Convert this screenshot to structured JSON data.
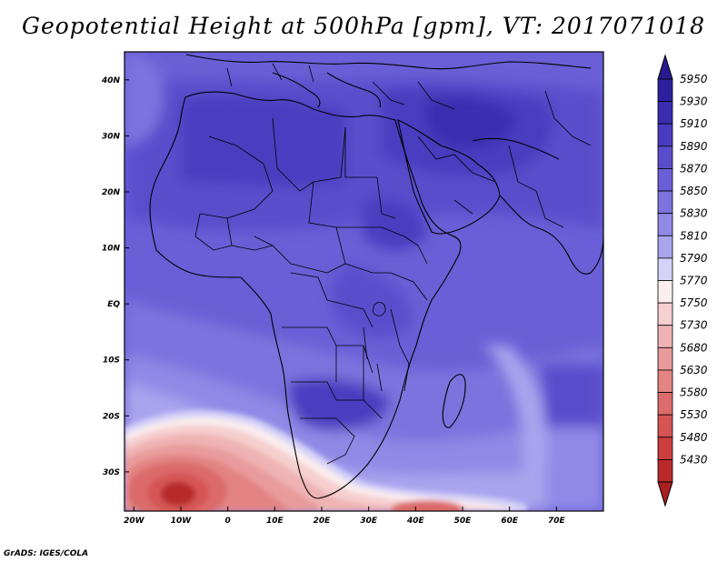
{
  "title": "Geopotential Height at 500hPa [gpm], VT: 2017071018",
  "footer": "GrADS: IGES/COLA",
  "map": {
    "lon_range": [
      -22,
      80
    ],
    "lat_range": [
      -37,
      45
    ],
    "lon_ticks": [
      {
        "value": -20,
        "label": "20W"
      },
      {
        "value": -10,
        "label": "10W"
      },
      {
        "value": 0,
        "label": "0"
      },
      {
        "value": 10,
        "label": "10E"
      },
      {
        "value": 20,
        "label": "20E"
      },
      {
        "value": 30,
        "label": "30E"
      },
      {
        "value": 40,
        "label": "40E"
      },
      {
        "value": 50,
        "label": "50E"
      },
      {
        "value": 60,
        "label": "60E"
      },
      {
        "value": 70,
        "label": "70E"
      }
    ],
    "lat_ticks": [
      {
        "value": 40,
        "label": "40N"
      },
      {
        "value": 30,
        "label": "30N"
      },
      {
        "value": 20,
        "label": "20N"
      },
      {
        "value": 10,
        "label": "10N"
      },
      {
        "value": 0,
        "label": "EQ"
      },
      {
        "value": -10,
        "label": "10S"
      },
      {
        "value": -20,
        "label": "20S"
      },
      {
        "value": -30,
        "label": "30S"
      }
    ]
  },
  "colorbar": {
    "levels": [
      {
        "label": "5950",
        "color": "#2e1f9e"
      },
      {
        "label": "5930",
        "color": "#3a2db0"
      },
      {
        "label": "5910",
        "color": "#4a3cc0"
      },
      {
        "label": "5890",
        "color": "#5a4dcc"
      },
      {
        "label": "5870",
        "color": "#6a5fd6"
      },
      {
        "label": "5850",
        "color": "#7c73de"
      },
      {
        "label": "5830",
        "color": "#9189e6"
      },
      {
        "label": "5810",
        "color": "#aaa4ee"
      },
      {
        "label": "5790",
        "color": "#d4d2f8"
      },
      {
        "label": "5770",
        "color": "#fbeeee"
      },
      {
        "label": "5750",
        "color": "#f6cfcf"
      },
      {
        "label": "5730",
        "color": "#efb3b3"
      },
      {
        "label": "5680",
        "color": "#e99b9b"
      },
      {
        "label": "5630",
        "color": "#e38383"
      },
      {
        "label": "5580",
        "color": "#dc6b6b"
      },
      {
        "label": "5530",
        "color": "#d55454"
      },
      {
        "label": "5480",
        "color": "#cd3e3e"
      },
      {
        "label": "5430",
        "color": "#b82a2a"
      }
    ],
    "top_arrow_color": "#2a1a90",
    "bottom_arrow_color": "#a82020"
  }
}
